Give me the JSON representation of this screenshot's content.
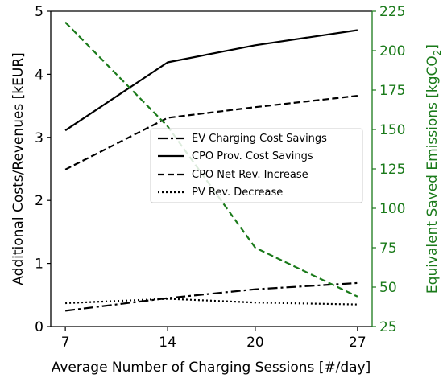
{
  "chart_data": {
    "type": "line",
    "x": [
      7,
      14,
      20,
      27
    ],
    "xticks": [
      "7",
      "14",
      "20",
      "27"
    ],
    "xlabel": "Average Number of Charging Sessions [#/day]",
    "ylabel_left": "Additional Costs/Revenues [kEUR]",
    "ylabel_right_main": "Equivalent Saved Emissions [kgCO",
    "ylabel_right_sub": "2",
    "ylabel_right_close": "]",
    "ylim_left": [
      0,
      5
    ],
    "ylim_right": [
      25,
      225
    ],
    "yticks_left": [
      "0",
      "1",
      "2",
      "3",
      "4",
      "5"
    ],
    "yticks_right": [
      "25",
      "50",
      "75",
      "100",
      "125",
      "150",
      "175",
      "200",
      "225"
    ],
    "grid": false,
    "legend_placement": "center-right",
    "series": [
      {
        "name": "EV Charging Cost Savings",
        "axis": "left",
        "style": "dashdot",
        "color": "#000000",
        "values": [
          0.25,
          0.45,
          0.59,
          0.69
        ]
      },
      {
        "name": "CPO Prov. Cost Savings",
        "axis": "left",
        "style": "solid",
        "color": "#000000",
        "values": [
          3.11,
          4.19,
          4.46,
          4.7
        ]
      },
      {
        "name": "CPO Net Rev. Increase",
        "axis": "left",
        "style": "dashed",
        "color": "#000000",
        "values": [
          2.49,
          3.31,
          3.48,
          3.66
        ]
      },
      {
        "name": "PV Rev. Decrease",
        "axis": "left",
        "style": "dotted",
        "color": "#000000",
        "values": [
          0.37,
          0.44,
          0.38,
          0.35
        ]
      },
      {
        "name": "",
        "axis": "right",
        "style": "dashed",
        "color": "#1a7a1a",
        "values": [
          218,
          152,
          75,
          44
        ]
      }
    ]
  },
  "colors": {
    "right_axis": "#1a7a1a",
    "left_axis": "#000000"
  }
}
